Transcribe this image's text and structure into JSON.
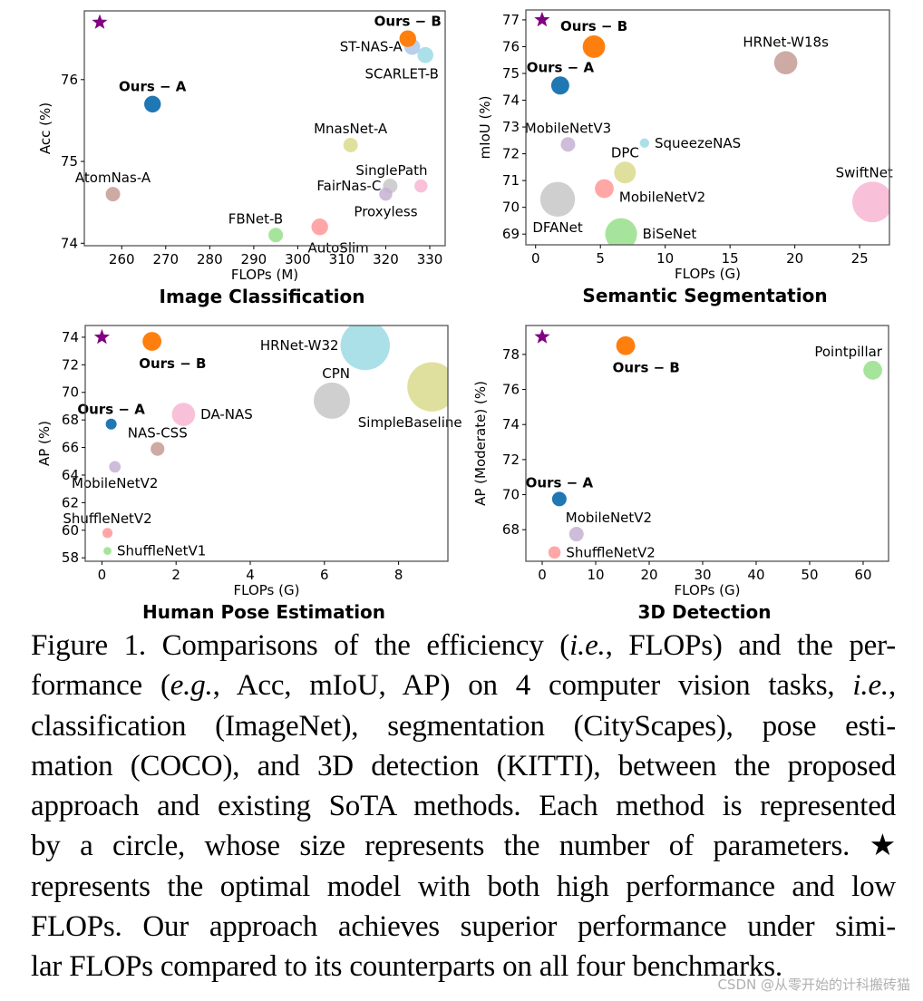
{
  "chart_data": [
    {
      "type": "scatter",
      "title": "Image Classification",
      "xlabel": "FLOPs (M)",
      "ylabel": "Acc (%)",
      "xlim": [
        251.5,
        333.5
      ],
      "ylim": [
        73.97,
        76.84
      ],
      "xticks": [
        260,
        270,
        280,
        290,
        300,
        310,
        320,
        330
      ],
      "yticks": [
        74,
        75,
        76
      ],
      "grid": false,
      "star": {
        "x": 255,
        "y": 76.7,
        "color": "#800080"
      },
      "points": [
        {
          "name": "AtomNas-A",
          "x": 258,
          "y": 74.6,
          "size": 1.0,
          "color": "#c49c94",
          "bold": false,
          "label_pos": "above"
        },
        {
          "name": "Ours − A",
          "x": 267,
          "y": 75.7,
          "size": 1.15,
          "color": "#1f77b4",
          "bold": true,
          "label_pos": "above"
        },
        {
          "name": "FBNet-B",
          "x": 295,
          "y": 74.1,
          "size": 1.0,
          "color": "#98df8a",
          "bold": false,
          "label_pos": "above-left"
        },
        {
          "name": "AutoSlim",
          "x": 305,
          "y": 74.2,
          "size": 1.15,
          "color": "#ff9896",
          "bold": false,
          "label_pos": "below-right"
        },
        {
          "name": "MnasNet-A",
          "x": 312,
          "y": 75.2,
          "size": 1.0,
          "color": "#dbdb8d",
          "bold": false,
          "label_pos": "above"
        },
        {
          "name": "FairNas-C",
          "x": 321,
          "y": 74.7,
          "size": 1.0,
          "color": "#c7c7c7",
          "bold": false,
          "label_pos": "left"
        },
        {
          "name": "Proxyless",
          "x": 320,
          "y": 74.6,
          "size": 0.9,
          "color": "#c5b0d5",
          "bold": false,
          "label_pos": "below"
        },
        {
          "name": "SinglePath",
          "x": 328,
          "y": 74.7,
          "size": 0.9,
          "color": "#f7b6d2",
          "bold": false,
          "label_pos": "above-left"
        },
        {
          "name": "ST-NAS-A",
          "x": 326,
          "y": 76.4,
          "size": 1.1,
          "color": "#aec7e8",
          "bold": false,
          "label_pos": "left"
        },
        {
          "name": "SCARLET-B",
          "x": 329,
          "y": 76.3,
          "size": 1.1,
          "color": "#9edae5",
          "bold": false,
          "label_pos": "below-left"
        },
        {
          "name": "Ours − B",
          "x": 325,
          "y": 76.5,
          "size": 1.15,
          "color": "#ff7f0e",
          "bold": true,
          "label_pos": "above"
        }
      ]
    },
    {
      "type": "scatter",
      "title": "Semantic Segmentation",
      "xlabel": "FLOPs (G)",
      "ylabel": "mIoU (%)",
      "xlim": [
        -0.75,
        27.3
      ],
      "ylim": [
        68.6,
        77.37
      ],
      "xticks": [
        0,
        5,
        10,
        15,
        20,
        25
      ],
      "yticks": [
        69,
        70,
        71,
        72,
        73,
        74,
        75,
        76,
        77
      ],
      "grid": false,
      "star": {
        "x": 0.5,
        "y": 77.0,
        "color": "#800080"
      },
      "points": [
        {
          "name": "Ours − B",
          "x": 4.5,
          "y": 76.0,
          "size": 1.55,
          "color": "#ff7f0e",
          "bold": true,
          "label_pos": "above"
        },
        {
          "name": "Ours − A",
          "x": 1.9,
          "y": 74.55,
          "size": 1.25,
          "color": "#1f77b4",
          "bold": true,
          "label_pos": "above"
        },
        {
          "name": "HRNet-W18s",
          "x": 19.3,
          "y": 75.4,
          "size": 1.6,
          "color": "#c49c94",
          "bold": false,
          "label_pos": "above"
        },
        {
          "name": "MobileNetV3",
          "x": 2.5,
          "y": 72.35,
          "size": 1.0,
          "color": "#c5b0d5",
          "bold": false,
          "label_pos": "above"
        },
        {
          "name": "SqueezeNAS",
          "x": 8.4,
          "y": 72.4,
          "size": 0.65,
          "color": "#9edae5",
          "bold": false,
          "label_pos": "right"
        },
        {
          "name": "DPC",
          "x": 6.9,
          "y": 71.3,
          "size": 1.5,
          "color": "#dbdb8d",
          "bold": false,
          "label_pos": "above"
        },
        {
          "name": "MobileNetV2",
          "x": 5.3,
          "y": 70.7,
          "size": 1.3,
          "color": "#ff9896",
          "bold": false,
          "label_pos": "right-below"
        },
        {
          "name": "DFANet",
          "x": 1.7,
          "y": 70.3,
          "size": 2.4,
          "color": "#c7c7c7",
          "bold": false,
          "label_pos": "below"
        },
        {
          "name": "BiSeNet",
          "x": 6.6,
          "y": 69.0,
          "size": 2.2,
          "color": "#98df8a",
          "bold": false,
          "label_pos": "right"
        },
        {
          "name": "SwiftNet",
          "x": 26.0,
          "y": 70.2,
          "size": 2.8,
          "color": "#f7b6d2",
          "bold": false,
          "label_pos": "above-left"
        }
      ]
    },
    {
      "type": "scatter",
      "title": "Human Pose Estimation",
      "xlabel": "FLOPs (G)",
      "ylabel": "AP (%)",
      "xlim": [
        -0.45,
        9.33
      ],
      "ylim": [
        57.75,
        74.85
      ],
      "xticks": [
        0,
        2,
        4,
        6,
        8
      ],
      "yticks": [
        58,
        60,
        62,
        64,
        66,
        68,
        70,
        72,
        74
      ],
      "grid": false,
      "star": {
        "x": 0.0,
        "y": 74.0,
        "color": "#800080"
      },
      "points": [
        {
          "name": "Ours − B",
          "x": 1.35,
          "y": 73.7,
          "size": 1.3,
          "color": "#ff7f0e",
          "bold": true,
          "label_pos": "below-right"
        },
        {
          "name": "HRNet-W32",
          "x": 7.1,
          "y": 73.4,
          "size": 3.4,
          "color": "#9edae5",
          "bold": false,
          "label_pos": "left"
        },
        {
          "name": "SimpleBaseline",
          "x": 8.9,
          "y": 70.4,
          "size": 3.4,
          "color": "#dbdb8d",
          "bold": false,
          "label_pos": "below-left"
        },
        {
          "name": "CPN",
          "x": 6.2,
          "y": 69.4,
          "size": 2.5,
          "color": "#c7c7c7",
          "bold": false,
          "label_pos": "above-left"
        },
        {
          "name": "DA-NAS",
          "x": 2.2,
          "y": 68.4,
          "size": 1.6,
          "color": "#f7b6d2",
          "bold": false,
          "label_pos": "right"
        },
        {
          "name": "Ours − A",
          "x": 0.25,
          "y": 67.7,
          "size": 0.75,
          "color": "#1f77b4",
          "bold": true,
          "label_pos": "above"
        },
        {
          "name": "NAS-CSS",
          "x": 1.5,
          "y": 65.9,
          "size": 0.95,
          "color": "#c49c94",
          "bold": false,
          "label_pos": "above"
        },
        {
          "name": "MobileNetV2",
          "x": 0.35,
          "y": 64.6,
          "size": 0.8,
          "color": "#c5b0d5",
          "bold": false,
          "label_pos": "below"
        },
        {
          "name": "ShuffleNetV2",
          "x": 0.15,
          "y": 59.8,
          "size": 0.7,
          "color": "#ff9896",
          "bold": false,
          "label_pos": "above"
        },
        {
          "name": "ShuffleNetV1",
          "x": 0.15,
          "y": 58.5,
          "size": 0.55,
          "color": "#98df8a",
          "bold": false,
          "label_pos": "right"
        }
      ]
    },
    {
      "type": "scatter",
      "title": "3D Detection",
      "xlabel": "FLOPs (G)",
      "ylabel": "AP (Moderate) (%)",
      "xlim": [
        -3.05,
        64.75
      ],
      "ylim": [
        66.2,
        79.65
      ],
      "xticks": [
        0,
        10,
        20,
        30,
        40,
        50,
        60
      ],
      "yticks": [
        68,
        70,
        72,
        74,
        76,
        78
      ],
      "grid": false,
      "star": {
        "x": 0.0,
        "y": 79.0,
        "color": "#800080"
      },
      "points": [
        {
          "name": "Ours − B",
          "x": 15.6,
          "y": 78.5,
          "size": 1.3,
          "color": "#ff7f0e",
          "bold": true,
          "label_pos": "below-right"
        },
        {
          "name": "Pointpillar",
          "x": 61.8,
          "y": 77.1,
          "size": 1.3,
          "color": "#98df8a",
          "bold": false,
          "label_pos": "above-left"
        },
        {
          "name": "Ours − A",
          "x": 3.2,
          "y": 69.75,
          "size": 1.0,
          "color": "#1f77b4",
          "bold": true,
          "label_pos": "above"
        },
        {
          "name": "MobileNetV2",
          "x": 6.4,
          "y": 67.75,
          "size": 1.0,
          "color": "#c5b0d5",
          "bold": false,
          "label_pos": "above-right"
        },
        {
          "name": "ShuffleNetV2",
          "x": 2.3,
          "y": 66.7,
          "size": 0.85,
          "color": "#ff9896",
          "bold": false,
          "label_pos": "right"
        }
      ]
    }
  ],
  "caption": {
    "lines": [
      [
        {
          "t": "Figure 1. Comparisons of the efficiency ("
        },
        {
          "t": "i.e.",
          "i": true
        },
        {
          "t": ", FLOPs) and the per-"
        }
      ],
      [
        {
          "t": "formance ("
        },
        {
          "t": "e.g.",
          "i": true
        },
        {
          "t": ", Acc, mIoU, AP) on 4 computer vision tasks, "
        },
        {
          "t": "i.e.",
          "i": true
        },
        {
          "t": ","
        }
      ],
      [
        {
          "t": "classification (ImageNet), segmentation (CityScapes), pose esti-"
        }
      ],
      [
        {
          "t": "mation (COCO), and 3D detection (KITTI), between the proposed"
        }
      ],
      [
        {
          "t": "approach and existing SoTA methods. Each method is represented"
        }
      ],
      [
        {
          "t": "by a circle, whose size represents the number of parameters. ★"
        }
      ],
      [
        {
          "t": "represents the optimal model with both high performance and low"
        }
      ],
      [
        {
          "t": "FLOPs. Our approach achieves superior performance under simi-"
        }
      ],
      [
        {
          "t": "lar FLOPs compared to its counterparts on all four benchmarks."
        }
      ]
    ]
  },
  "watermark": "CSDN @从零开始的计科搬砖猫"
}
